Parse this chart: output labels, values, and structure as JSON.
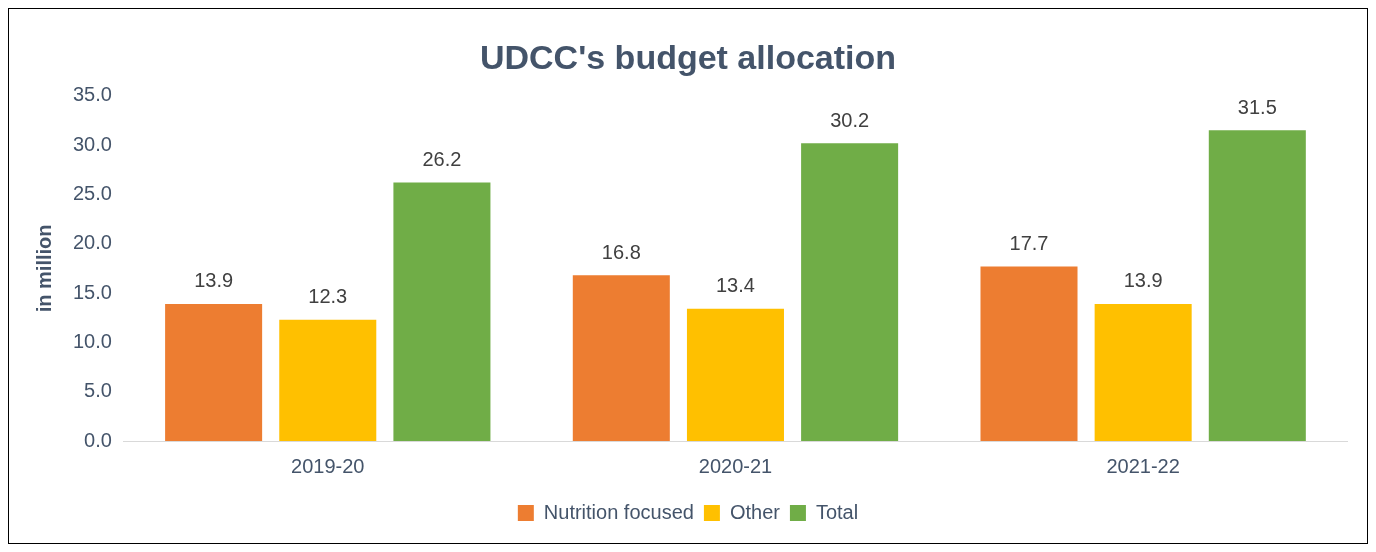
{
  "chart_data": {
    "type": "bar",
    "title": "UDCC's budget allocation",
    "ylabel": "in million",
    "categories": [
      "2019-20",
      "2020-21",
      "2021-22"
    ],
    "series": [
      {
        "name": "Nutrition focused",
        "color": "#ed7d31",
        "values": [
          13.9,
          16.8,
          17.7
        ]
      },
      {
        "name": "Other",
        "color": "#ffc000",
        "values": [
          12.3,
          13.4,
          13.9
        ]
      },
      {
        "name": "Total",
        "color": "#70ad47",
        "values": [
          26.2,
          30.2,
          31.5
        ]
      }
    ],
    "ylim": [
      0,
      35
    ],
    "yticks": [
      {
        "value": 0,
        "label": "0.0"
      },
      {
        "value": 5,
        "label": "5.0"
      },
      {
        "value": 10,
        "label": "10.0"
      },
      {
        "value": 15,
        "label": "15.0"
      },
      {
        "value": 20,
        "label": "20.0"
      },
      {
        "value": 25,
        "label": "25.0"
      },
      {
        "value": 30,
        "label": "30.0"
      },
      {
        "value": 35,
        "label": "35.0"
      }
    ],
    "grid": false,
    "legend": "bottom",
    "data_labels": true
  }
}
